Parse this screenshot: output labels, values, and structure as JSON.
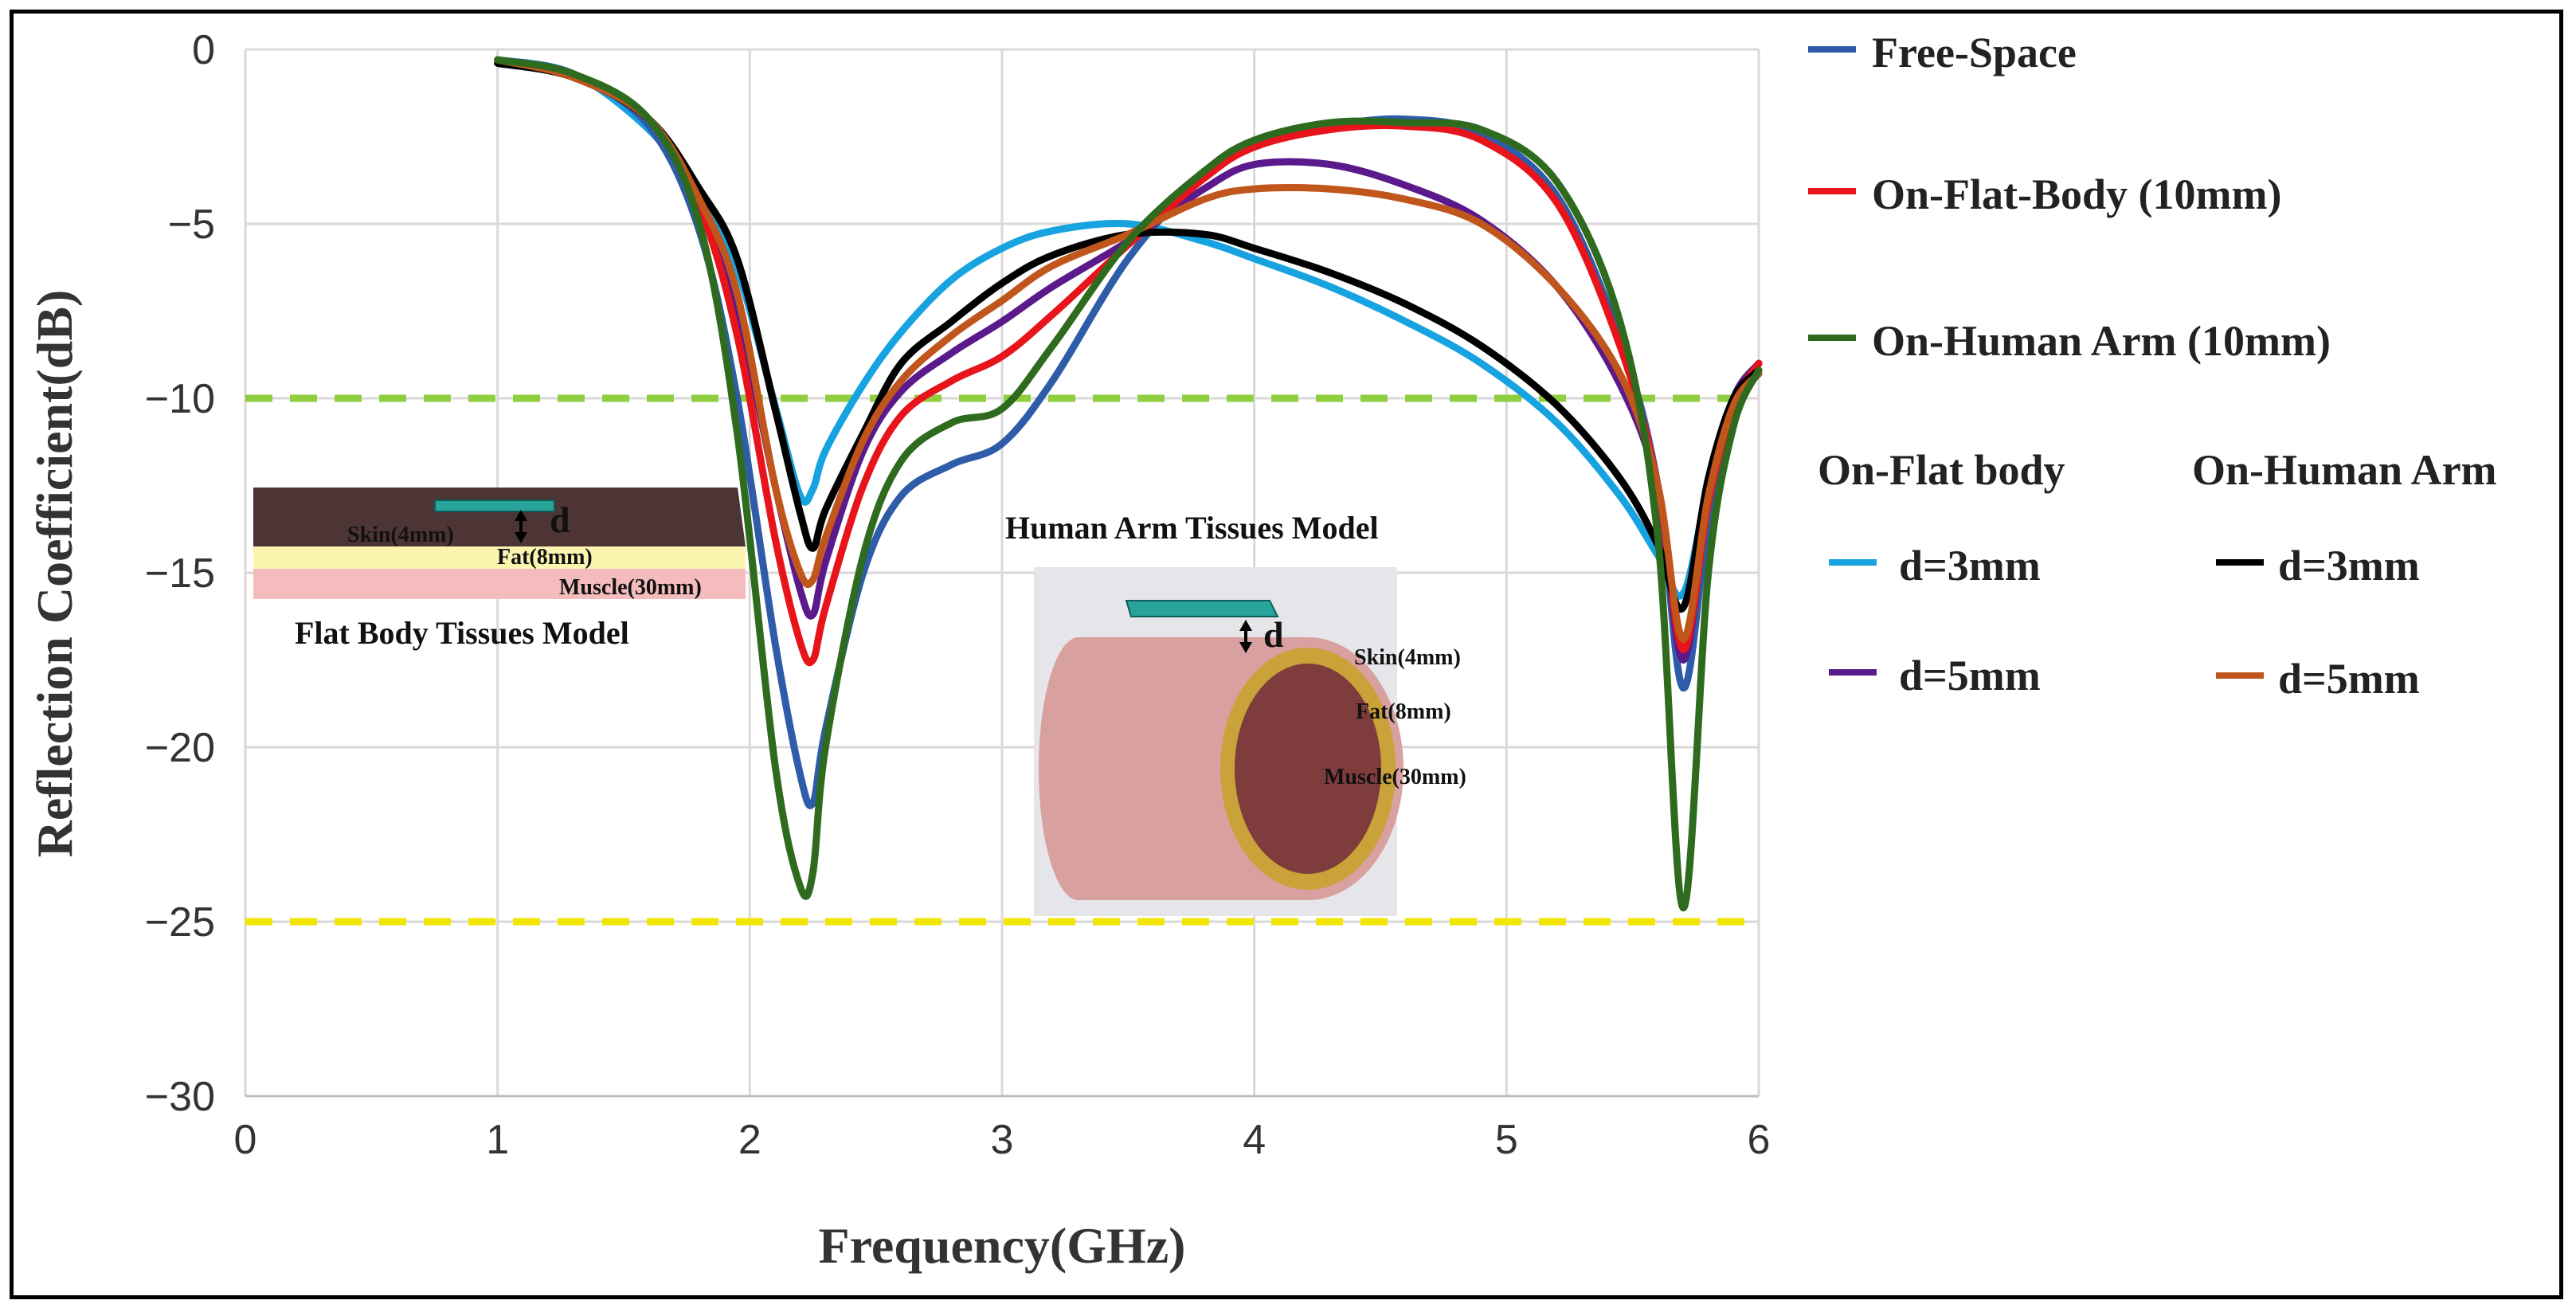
{
  "chart_data": {
    "type": "line",
    "xlabel": "Frequency(GHz)",
    "ylabel": "Reflection Coefficient(dB)",
    "xlim": [
      0,
      6
    ],
    "ylim": [
      -30,
      0
    ],
    "xticks": [
      0,
      1,
      2,
      3,
      4,
      5,
      6
    ],
    "yticks": [
      0,
      -5,
      -10,
      -15,
      -20,
      -25,
      -30
    ],
    "ytick_labels": [
      "0",
      "−5",
      "−10",
      "−15",
      "−20",
      "−25",
      "−30"
    ],
    "grid": true,
    "legend_position": "right",
    "reference_lines": [
      {
        "y": -10,
        "color": "#8fce3f",
        "style": "dashed"
      },
      {
        "y": -25,
        "color": "#f2e600",
        "style": "dashed"
      }
    ],
    "series": [
      {
        "name": "Free-Space",
        "color": "#2e5ca8",
        "x": [
          1.0,
          1.3,
          1.6,
          1.8,
          1.95,
          2.1,
          2.2,
          2.25,
          2.3,
          2.45,
          2.6,
          2.8,
          3.0,
          3.2,
          3.5,
          3.8,
          4.0,
          4.3,
          4.6,
          4.9,
          5.2,
          5.45,
          5.6,
          5.7,
          5.8,
          5.9,
          6.0
        ],
        "y": [
          -0.3,
          -0.7,
          -2.2,
          -5.2,
          -10,
          -17,
          -20.8,
          -21.6,
          -19.5,
          -15,
          -12.8,
          -11.9,
          -11.3,
          -9.5,
          -6,
          -3.6,
          -2.8,
          -2.2,
          -2.0,
          -2.4,
          -4.2,
          -8.3,
          -12.5,
          -18.3,
          -13.5,
          -10.5,
          -9.0
        ]
      },
      {
        "name": "On-Flat-Body (10mm)",
        "color": "#e8141c",
        "x": [
          1.0,
          1.3,
          1.6,
          1.8,
          1.95,
          2.1,
          2.2,
          2.25,
          2.3,
          2.45,
          2.6,
          2.8,
          3.0,
          3.2,
          3.5,
          3.8,
          4.0,
          4.3,
          4.6,
          4.9,
          5.2,
          5.45,
          5.6,
          5.7,
          5.8,
          5.9,
          6.0
        ],
        "y": [
          -0.3,
          -0.8,
          -2.0,
          -4.5,
          -8.2,
          -14,
          -17,
          -17.5,
          -16,
          -12.5,
          -10.5,
          -9.5,
          -8.8,
          -7.6,
          -5.6,
          -3.7,
          -2.8,
          -2.3,
          -2.2,
          -2.6,
          -4.4,
          -8.5,
          -12.5,
          -17.2,
          -13,
          -10.2,
          -9.0
        ]
      },
      {
        "name": "On-Human Arm (10mm)",
        "color": "#2f6b1f",
        "x": [
          1.0,
          1.3,
          1.6,
          1.8,
          1.95,
          2.1,
          2.2,
          2.25,
          2.3,
          2.45,
          2.6,
          2.8,
          3.0,
          3.2,
          3.5,
          3.8,
          4.0,
          4.3,
          4.6,
          4.9,
          5.2,
          5.45,
          5.6,
          5.7,
          5.8,
          5.9,
          6.0
        ],
        "y": [
          -0.3,
          -0.7,
          -2.0,
          -5.0,
          -11,
          -20.5,
          -24.0,
          -23.6,
          -20,
          -14.5,
          -11.8,
          -10.7,
          -10.3,
          -8.5,
          -5.5,
          -3.5,
          -2.6,
          -2.1,
          -2.1,
          -2.3,
          -3.8,
          -7.8,
          -14,
          -24.6,
          -15,
          -10.8,
          -9.2
        ]
      },
      {
        "name": "d=3mm",
        "group": "On-Flat body",
        "color": "#17a2e0",
        "x": [
          1.0,
          1.3,
          1.6,
          1.8,
          1.95,
          2.1,
          2.2,
          2.25,
          2.3,
          2.45,
          2.6,
          2.8,
          3.0,
          3.2,
          3.5,
          3.8,
          4.0,
          4.3,
          4.6,
          4.9,
          5.2,
          5.45,
          5.6,
          5.7,
          5.8,
          5.9,
          6.0
        ],
        "y": [
          -0.3,
          -0.7,
          -2.3,
          -4.2,
          -6.3,
          -10.2,
          -12.8,
          -12.6,
          -11.5,
          -9.6,
          -8.1,
          -6.6,
          -5.7,
          -5.2,
          -5.0,
          -5.5,
          -6.0,
          -6.8,
          -7.8,
          -9.0,
          -10.7,
          -12.8,
          -14.5,
          -15.6,
          -12.5,
          -10.2,
          -9.0
        ]
      },
      {
        "name": "d=5mm",
        "group": "On-Flat body",
        "color": "#5b1a8c",
        "x": [
          1.0,
          1.3,
          1.6,
          1.8,
          1.95,
          2.1,
          2.2,
          2.25,
          2.3,
          2.45,
          2.6,
          2.8,
          3.0,
          3.2,
          3.5,
          3.8,
          4.0,
          4.3,
          4.6,
          4.9,
          5.2,
          5.45,
          5.6,
          5.7,
          5.8,
          5.9,
          6.0
        ],
        "y": [
          -0.3,
          -0.8,
          -2.0,
          -4.5,
          -7.5,
          -12.5,
          -15.5,
          -16.2,
          -14.7,
          -11.5,
          -9.8,
          -8.7,
          -7.8,
          -6.8,
          -5.5,
          -4.0,
          -3.3,
          -3.3,
          -3.9,
          -4.9,
          -6.8,
          -9.6,
          -12.6,
          -17.5,
          -12.8,
          -10.0,
          -9.0
        ]
      },
      {
        "name": "d=3mm",
        "group": "On-Human Arm",
        "color": "#000000",
        "x": [
          1.0,
          1.3,
          1.6,
          1.8,
          1.95,
          2.1,
          2.2,
          2.25,
          2.3,
          2.45,
          2.6,
          2.8,
          3.0,
          3.2,
          3.5,
          3.8,
          4.0,
          4.3,
          4.6,
          4.9,
          5.2,
          5.45,
          5.6,
          5.7,
          5.8,
          5.9,
          6.0
        ],
        "y": [
          -0.4,
          -0.8,
          -2.0,
          -4.0,
          -6.0,
          -10.3,
          -13.3,
          -14.3,
          -13.2,
          -11.0,
          -9.0,
          -7.8,
          -6.7,
          -5.9,
          -5.3,
          -5.3,
          -5.7,
          -6.4,
          -7.3,
          -8.5,
          -10.2,
          -12.3,
          -14.2,
          -16.0,
          -12.3,
          -10.0,
          -9.2
        ]
      },
      {
        "name": "d=5mm",
        "group": "On-Human Arm",
        "color": "#c0561c",
        "x": [
          1.0,
          1.3,
          1.6,
          1.8,
          1.95,
          2.1,
          2.2,
          2.25,
          2.3,
          2.45,
          2.6,
          2.8,
          3.0,
          3.2,
          3.5,
          3.8,
          4.0,
          4.3,
          4.6,
          4.9,
          5.2,
          5.45,
          5.6,
          5.7,
          5.8,
          5.9,
          6.0
        ],
        "y": [
          -0.3,
          -0.8,
          -2.0,
          -4.3,
          -7.0,
          -12.5,
          -15.0,
          -15.2,
          -14.0,
          -11.2,
          -9.5,
          -8.2,
          -7.2,
          -6.2,
          -5.3,
          -4.3,
          -4.0,
          -4.0,
          -4.3,
          -5.0,
          -6.8,
          -9.3,
          -12.5,
          -16.9,
          -12.8,
          -10.2,
          -9.3
        ]
      }
    ],
    "legend": {
      "entries": [
        {
          "label": "Free-Space",
          "color": "#2e5ca8"
        },
        {
          "label": "On-Flat-Body (10mm)",
          "color": "#e8141c"
        },
        {
          "label": "On-Human Arm (10mm)",
          "color": "#2f6b1f"
        }
      ],
      "group_headers": [
        "On-Flat body",
        "On-Human Arm"
      ],
      "grouped_entries": [
        {
          "label": "d=3mm",
          "color": "#17a2e0"
        },
        {
          "label": "d=3mm",
          "color": "#000000"
        },
        {
          "label": "d=5mm",
          "color": "#5b1a8c"
        },
        {
          "label": "d=5mm",
          "color": "#c0561c"
        }
      ]
    },
    "insets": {
      "flat": {
        "title": "Flat Body Tissues Model",
        "skin": "Skin(4mm)",
        "fat": "Fat(8mm)",
        "muscle": "Muscle(30mm)",
        "d": "d",
        "colors": {
          "skin": "#4e3535",
          "fat": "#fbf5b0",
          "muscle": "#f4bcbc",
          "antenna": "#2aa39a"
        }
      },
      "arm": {
        "title": "Human Arm Tissues Model",
        "skin": "Skin(4mm)",
        "fat": "Fat(8mm)",
        "muscle": "Muscle(30mm)",
        "d": "d",
        "colors": {
          "skin": "#d9a0a0",
          "fat": "#c9a23a",
          "muscle": "#7e3c3c",
          "antenna": "#2aa39a"
        }
      }
    }
  }
}
